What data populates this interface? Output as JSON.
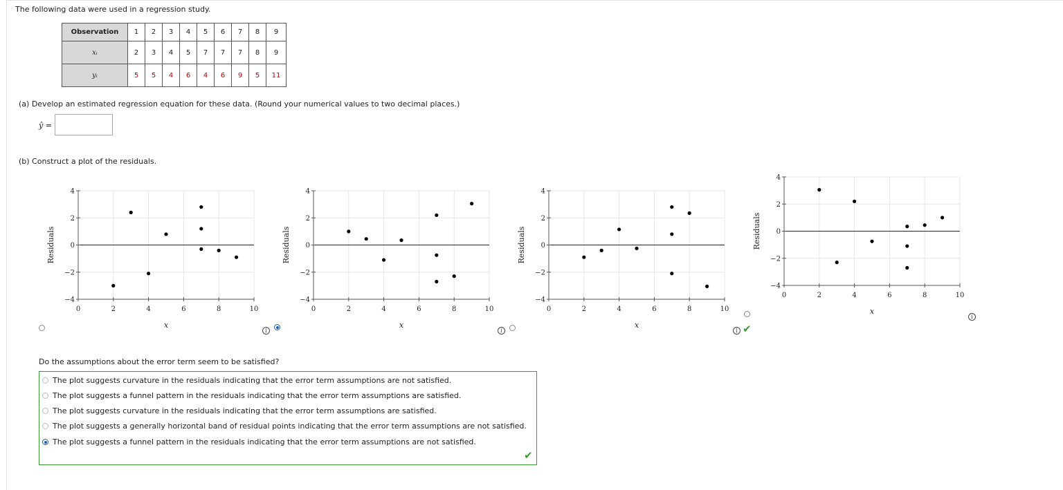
{
  "intro": "The following data were used in a regression study.",
  "table": {
    "header_label": "Observation",
    "x_label": "xᵢ",
    "y_label": "yᵢ",
    "observations": [
      "1",
      "2",
      "3",
      "4",
      "5",
      "6",
      "7",
      "8",
      "9"
    ],
    "x": [
      "2",
      "3",
      "4",
      "5",
      "7",
      "7",
      "7",
      "8",
      "9"
    ],
    "y": [
      "5",
      "5",
      "4",
      "6",
      "4",
      "6",
      "9",
      "5",
      "11"
    ]
  },
  "part_a": {
    "text": "(a)   Develop an estimated regression equation for these data. (Round your numerical values to two decimal places.)",
    "yhat_label": "ŷ =",
    "answer_value": ""
  },
  "part_b": {
    "text": "(b)   Construct a plot of the residuals."
  },
  "info_glyph": "i",
  "check_glyph": "✔",
  "chart_data": [
    {
      "type": "scatter",
      "xlabel": "x",
      "ylabel": "Residuals",
      "xlim": [
        0,
        10
      ],
      "ylim": [
        -4,
        4
      ],
      "xticks": [
        0,
        2,
        4,
        6,
        8,
        10
      ],
      "yticks": [
        -4,
        -2,
        0,
        2,
        4
      ],
      "selected": false,
      "points": [
        [
          2,
          -3.0
        ],
        [
          3,
          2.4
        ],
        [
          4,
          -2.1
        ],
        [
          5,
          0.8
        ],
        [
          7,
          2.8
        ],
        [
          7,
          1.2
        ],
        [
          7,
          -0.3
        ],
        [
          8,
          -0.4
        ],
        [
          9,
          -0.9
        ]
      ]
    },
    {
      "type": "scatter",
      "xlabel": "x",
      "ylabel": "Residuals",
      "xlim": [
        0,
        10
      ],
      "ylim": [
        -4,
        4
      ],
      "xticks": [
        0,
        2,
        4,
        6,
        8,
        10
      ],
      "yticks": [
        -4,
        -2,
        0,
        2,
        4
      ],
      "selected": true,
      "points": [
        [
          2,
          1.0
        ],
        [
          3,
          0.45
        ],
        [
          4,
          -1.1
        ],
        [
          5,
          0.35
        ],
        [
          7,
          2.2
        ],
        [
          7,
          -0.75
        ],
        [
          7,
          -2.7
        ],
        [
          8,
          -2.3
        ],
        [
          9,
          3.05
        ]
      ]
    },
    {
      "type": "scatter",
      "xlabel": "x",
      "ylabel": "Residuals",
      "xlim": [
        0,
        10
      ],
      "ylim": [
        -4,
        4
      ],
      "xticks": [
        0,
        2,
        4,
        6,
        8,
        10
      ],
      "yticks": [
        -4,
        -2,
        0,
        2,
        4
      ],
      "selected": false,
      "points": [
        [
          2,
          -0.9
        ],
        [
          3,
          -0.4
        ],
        [
          4,
          1.15
        ],
        [
          5,
          -0.25
        ],
        [
          7,
          2.8
        ],
        [
          7,
          0.8
        ],
        [
          7,
          -2.1
        ],
        [
          8,
          2.35
        ],
        [
          9,
          -3.05
        ]
      ]
    },
    {
      "type": "scatter",
      "xlabel": "x",
      "ylabel": "Residuals",
      "xlim": [
        0,
        10
      ],
      "ylim": [
        -4,
        4
      ],
      "xticks": [
        0,
        2,
        4,
        6,
        8,
        10
      ],
      "yticks": [
        -4,
        -2,
        0,
        2,
        4
      ],
      "selected": false,
      "points": [
        [
          2,
          3.05
        ],
        [
          3,
          -2.3
        ],
        [
          4,
          2.2
        ],
        [
          5,
          -0.75
        ],
        [
          7,
          0.35
        ],
        [
          7,
          -1.1
        ],
        [
          7,
          -2.7
        ],
        [
          8,
          0.45
        ],
        [
          9,
          1.0
        ]
      ]
    }
  ],
  "part_c": {
    "question": "Do the assumptions about the error term seem to be satisfied?",
    "options": [
      {
        "label": "The plot suggests curvature in the residuals indicating that the error term assumptions are not satisfied.",
        "selected": false
      },
      {
        "label": "The plot suggests a funnel pattern in the residuals indicating that the error term assumptions are satisfied.",
        "selected": false
      },
      {
        "label": "The plot suggests curvature in the residuals indicating that the error term assumptions are satisfied.",
        "selected": false
      },
      {
        "label": "The plot suggests a generally horizontal band of residual points indicating that the error term assumptions are not satisfied.",
        "selected": false
      },
      {
        "label": "The plot suggests a funnel pattern in the residuals indicating that the error term assumptions are not satisfied.",
        "selected": true
      }
    ]
  }
}
